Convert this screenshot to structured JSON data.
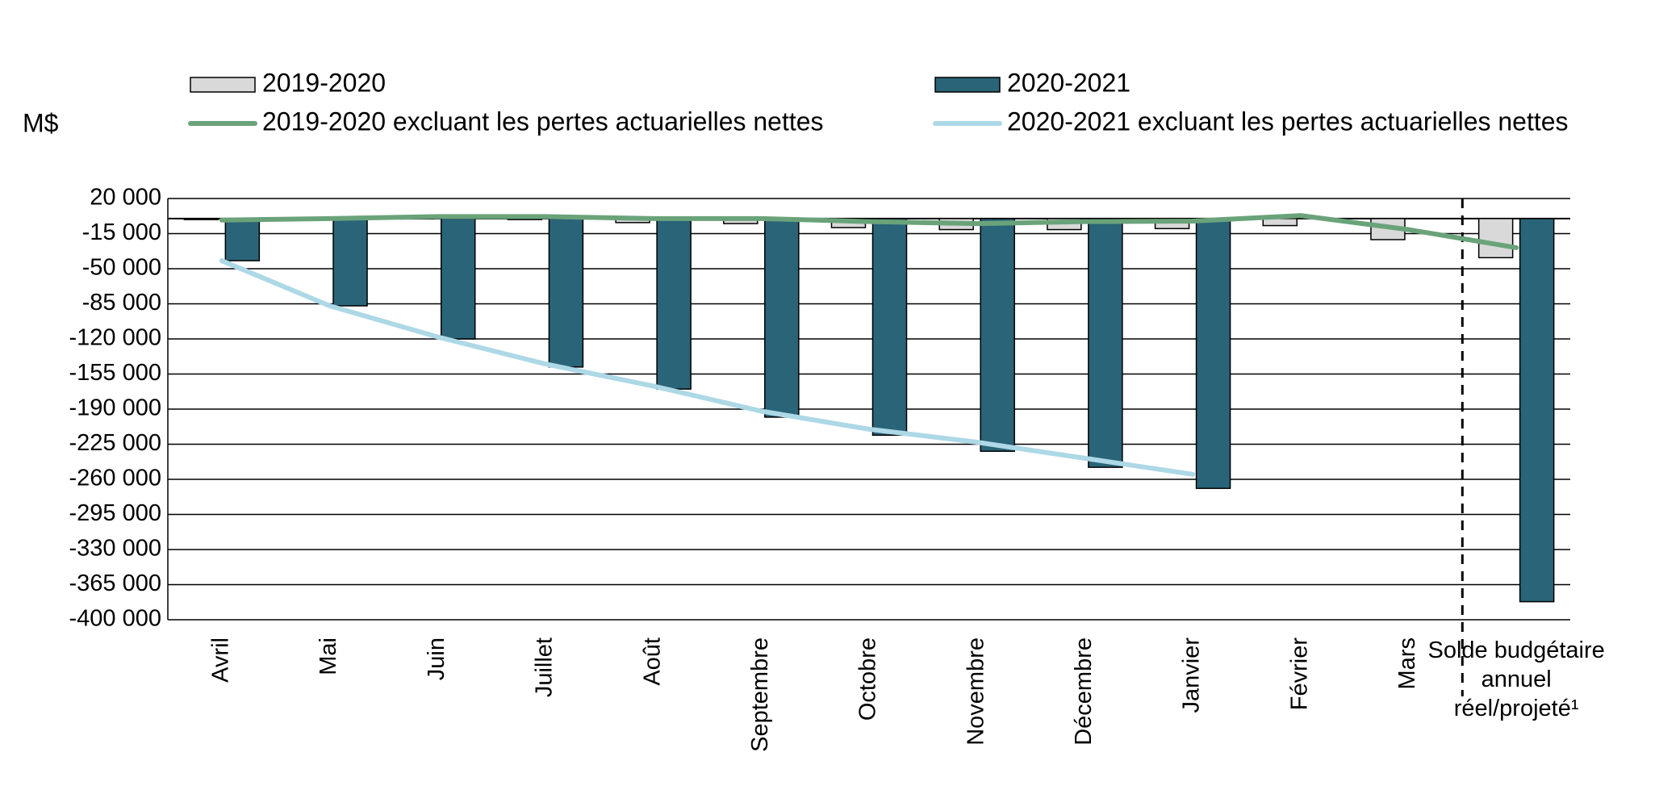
{
  "chart_data": {
    "type": "bar",
    "y_label": "M$",
    "categories": [
      "Avril",
      "Mai",
      "Juin",
      "Juillet",
      "Août",
      "Septembre",
      "Octobre",
      "Novembre",
      "Décembre",
      "Janvier",
      "Février",
      "Mars",
      "Solde budgétaire annuel réel/projeté¹"
    ],
    "series": [
      {
        "name": "2019-2020",
        "type": "bar",
        "color": "#d9d9d9",
        "values": [
          -1000,
          0,
          0,
          -1000,
          -4000,
          -5000,
          -9000,
          -11000,
          -11000,
          -10000,
          -7000,
          -21000,
          -39000
        ]
      },
      {
        "name": "2020-2021",
        "type": "bar",
        "color": "#2a6478",
        "values": [
          -42000,
          -87000,
          -120000,
          -148000,
          -170000,
          -198000,
          -216000,
          -232000,
          -248000,
          -269000,
          null,
          null,
          -382000
        ]
      },
      {
        "name": "2019-2020 excluant les pertes actuarielles nettes",
        "type": "line",
        "color": "#6aa37a",
        "values": [
          -1500,
          0,
          2000,
          2000,
          0,
          0,
          -3000,
          -5000,
          -3000,
          -2500,
          3000,
          -11000,
          -29000
        ]
      },
      {
        "name": "2020-2021 excluant les pertes actuarielles nettes",
        "type": "line",
        "color": "#add8e6",
        "values": [
          -42000,
          -87000,
          -118000,
          -145000,
          -167000,
          -192000,
          -210000,
          -223000,
          -239000,
          -255000,
          null,
          null,
          null
        ]
      }
    ],
    "ylim": [
      -400000,
      20000
    ],
    "yticks": [
      {
        "value": 20000,
        "label": "20 000"
      },
      {
        "value": -15000,
        "label": "-15 000"
      },
      {
        "value": -50000,
        "label": "-50 000"
      },
      {
        "value": -85000,
        "label": "-85 000"
      },
      {
        "value": -120000,
        "label": "-120 000"
      },
      {
        "value": -155000,
        "label": "-155 000"
      },
      {
        "value": -190000,
        "label": "-190 000"
      },
      {
        "value": -225000,
        "label": "-225 000"
      },
      {
        "value": -260000,
        "label": "-260 000"
      },
      {
        "value": -295000,
        "label": "-295 000"
      },
      {
        "value": -330000,
        "label": "-330 000"
      },
      {
        "value": -365000,
        "label": "-365 000"
      },
      {
        "value": -400000,
        "label": "-400 000"
      }
    ],
    "grid": true
  }
}
